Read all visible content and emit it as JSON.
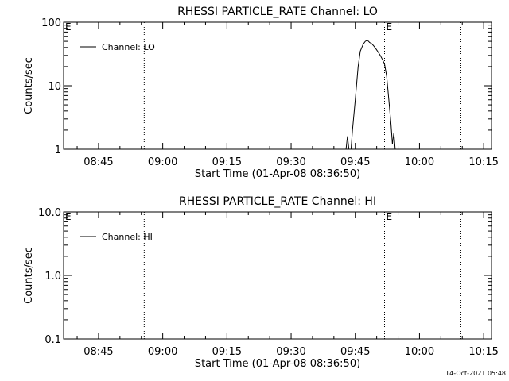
{
  "chart_data": [
    {
      "type": "line",
      "title": "RHESSI PARTICLE_RATE Channel: LO",
      "xlabel": "Start Time (01-Apr-08 08:36:50)",
      "ylabel": "Counts/sec",
      "yscale": "log",
      "ylim": [
        1,
        100
      ],
      "yticks": [
        1,
        10,
        100
      ],
      "ytick_labels": [
        "1",
        "10",
        "100"
      ],
      "xlim": [
        "08:36:50",
        "10:16:50"
      ],
      "xticks": [
        "08:45",
        "09:00",
        "09:15",
        "09:30",
        "09:45",
        "10:00",
        "10:15"
      ],
      "legend": {
        "label": "Channel: LO",
        "placement": "top-left"
      },
      "event_lines": [
        {
          "time": "08:55:40",
          "label": ""
        },
        {
          "time": "09:51:50",
          "label": "E"
        },
        {
          "time": "10:09:40",
          "label": ""
        }
      ],
      "corner_label": "E",
      "series": [
        {
          "name": "Channel: LO",
          "points": [
            [
              "09:42:50",
              1
            ],
            [
              "09:43:10",
              1.6
            ],
            [
              "09:43:30",
              1
            ],
            [
              "09:44:00",
              1
            ],
            [
              "09:44:20",
              2.0
            ],
            [
              "09:45:00",
              6
            ],
            [
              "09:45:40",
              20
            ],
            [
              "09:46:10",
              35
            ],
            [
              "09:46:50",
              45
            ],
            [
              "09:47:20",
              50
            ],
            [
              "09:47:50",
              52
            ],
            [
              "09:48:20",
              48
            ],
            [
              "09:48:50",
              46
            ],
            [
              "09:49:20",
              42
            ],
            [
              "09:49:50",
              38
            ],
            [
              "09:50:20",
              34
            ],
            [
              "09:50:50",
              30
            ],
            [
              "09:51:20",
              26
            ],
            [
              "09:51:50",
              22
            ],
            [
              "09:52:20",
              14
            ],
            [
              "09:52:50",
              6
            ],
            [
              "09:53:20",
              2.5
            ],
            [
              "09:53:40",
              1.2
            ],
            [
              "09:54:00",
              1.8
            ],
            [
              "09:54:20",
              1
            ]
          ]
        }
      ]
    },
    {
      "type": "line",
      "title": "RHESSI PARTICLE_RATE Channel: HI",
      "xlabel": "Start Time (01-Apr-08 08:36:50)",
      "ylabel": "Counts/sec",
      "yscale": "log",
      "ylim": [
        0.1,
        10
      ],
      "yticks": [
        0.1,
        1,
        10
      ],
      "ytick_labels": [
        "0.1",
        "1.0",
        "10.0"
      ],
      "xlim": [
        "08:36:50",
        "10:16:50"
      ],
      "xticks": [
        "08:45",
        "09:00",
        "09:15",
        "09:30",
        "09:45",
        "10:00",
        "10:15"
      ],
      "legend": {
        "label": "Channel: HI",
        "placement": "top-left"
      },
      "event_lines": [
        {
          "time": "08:55:40",
          "label": ""
        },
        {
          "time": "09:51:50",
          "label": "E"
        },
        {
          "time": "10:09:40",
          "label": ""
        }
      ],
      "corner_label": "E",
      "series": [
        {
          "name": "Channel: HI",
          "points": []
        }
      ]
    }
  ],
  "footer": {
    "timestamp": "14-Oct-2021 05:48"
  }
}
